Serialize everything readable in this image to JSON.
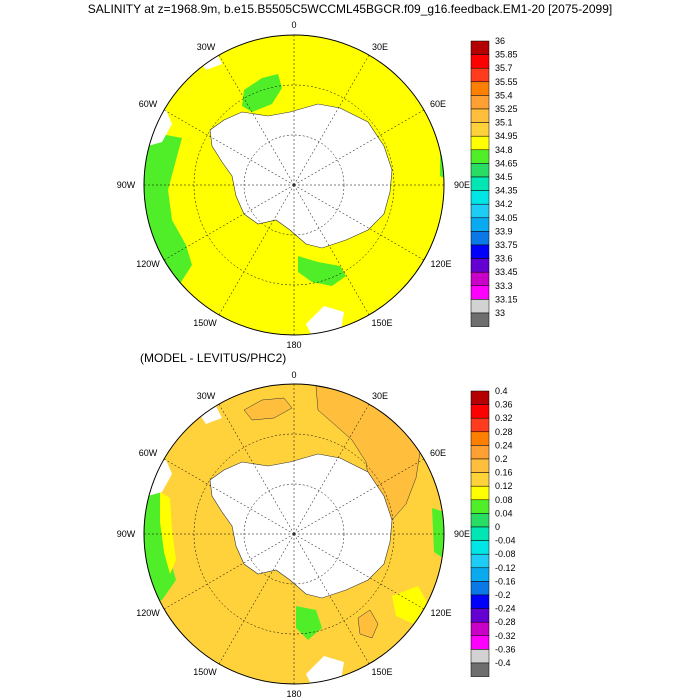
{
  "titles": {
    "top": "SALINITY at z=1968.9m, b.e15.B5505C5WCCML45BGCR.f09_g16.feedback.EM1-20 [2075-2099]",
    "bottom": "(MODEL - LEVITUS/PHC2)"
  },
  "longitude_labels": [
    "0",
    "30E",
    "60E",
    "90E",
    "120E",
    "150E",
    "180",
    "150W",
    "120W",
    "90W",
    "60W",
    "30W"
  ],
  "colorbar_top": {
    "labels": [
      "36",
      "35.85",
      "35.7",
      "35.55",
      "35.4",
      "35.25",
      "35.1",
      "34.95",
      "34.8",
      "34.65",
      "34.5",
      "34.35",
      "34.2",
      "34.05",
      "33.9",
      "33.75",
      "33.6",
      "33.45",
      "33.3",
      "33.15",
      "33"
    ],
    "colors": [
      "#b40000",
      "#ff0000",
      "#ff3c1e",
      "#ff7f00",
      "#ffa032",
      "#ffbe3c",
      "#ffd23c",
      "#ffff00",
      "#50ee28",
      "#28dc64",
      "#00e6b4",
      "#00e6e6",
      "#1ecdf5",
      "#0aaaf0",
      "#0a78e6",
      "#0000ff",
      "#6400d2",
      "#c800c8",
      "#ff00ff",
      "#d2d2d2",
      "#6e6e6e"
    ]
  },
  "colorbar_bottom": {
    "labels": [
      "0.4",
      "0.36",
      "0.32",
      "0.28",
      "0.24",
      "0.2",
      "0.16",
      "0.12",
      "0.08",
      "0.04",
      "0",
      "-0.04",
      "-0.08",
      "-0.12",
      "-0.16",
      "-0.2",
      "-0.24",
      "-0.28",
      "-0.32",
      "-0.36",
      "-0.4"
    ],
    "colors": [
      "#b40000",
      "#ff0000",
      "#ff3c1e",
      "#ff7f00",
      "#ffa032",
      "#ffbe3c",
      "#ffd23c",
      "#ffff00",
      "#50ee28",
      "#28dc64",
      "#00e6b4",
      "#00e6e6",
      "#1ecdf5",
      "#0aaaf0",
      "#0a78e6",
      "#0000ff",
      "#6400d2",
      "#c800c8",
      "#ff00ff",
      "#d2d2d2",
      "#6e6e6e"
    ]
  },
  "map_colors": {
    "top_main": "#ffff00",
    "top_green": "#50ee28",
    "bottom_main": "#ffd23c",
    "bottom_orange": "#ffbe3c",
    "bottom_green": "#50ee28",
    "bottom_yellow": "#ffff00",
    "land": "#ffffff"
  }
}
